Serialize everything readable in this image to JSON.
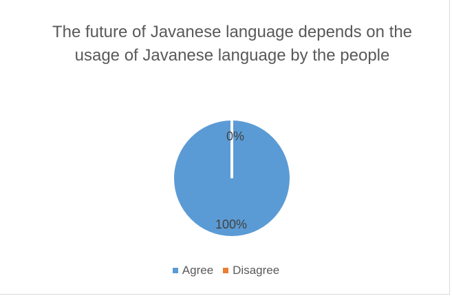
{
  "chart_data": {
    "type": "pie",
    "title": "The future of Javanese language depends on the usage of Javanese language by the people",
    "categories": [
      "Agree",
      "Disagree"
    ],
    "values": [
      100,
      0
    ],
    "data_labels": [
      "100%",
      "0%"
    ],
    "colors": [
      "#5b9bd5",
      "#ed7d31"
    ],
    "legend_position": "bottom"
  }
}
